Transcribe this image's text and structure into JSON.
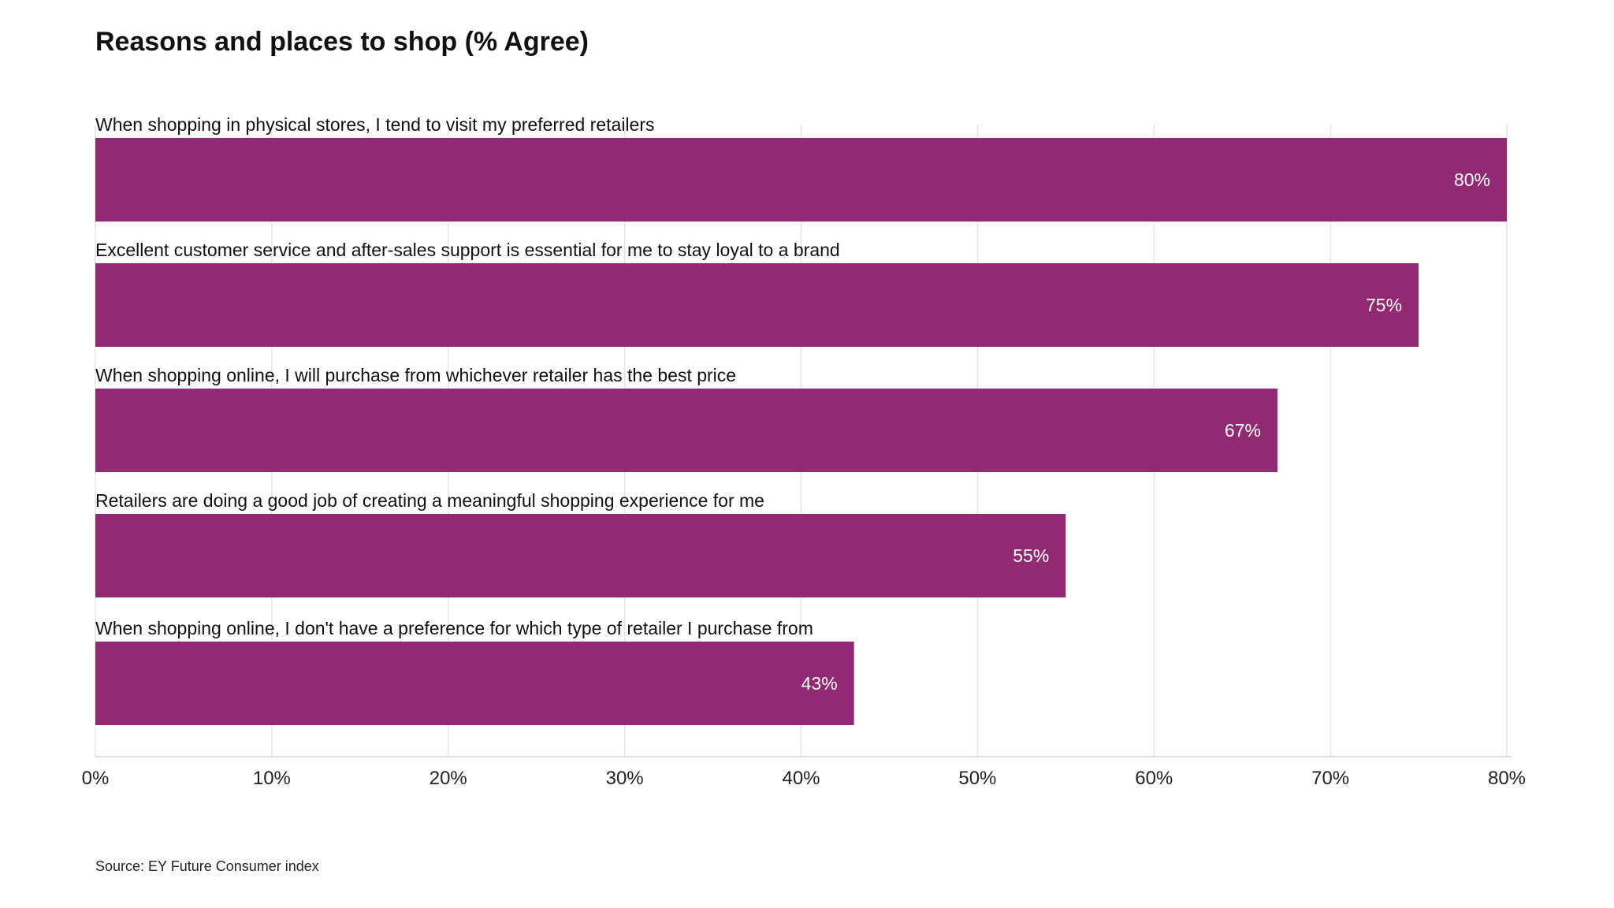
{
  "title": "Reasons and places to shop (% Agree)",
  "source": "Source: EY Future Consumer index",
  "chart_data": {
    "type": "bar",
    "orientation": "horizontal",
    "title": "Reasons and places to shop (% Agree)",
    "xlabel": "",
    "ylabel": "",
    "xlim": [
      0,
      80
    ],
    "x_ticks": [
      0,
      10,
      20,
      30,
      40,
      50,
      60,
      70,
      80
    ],
    "x_tick_labels": [
      "0%",
      "10%",
      "20%",
      "30%",
      "40%",
      "50%",
      "60%",
      "70%",
      "80%"
    ],
    "grid": "vertical",
    "legend": "none",
    "bar_color": "#912a72",
    "categories": [
      "When shopping in physical stores, I tend to visit my preferred retailers",
      "Excellent customer service and after-sales support is essential for me to stay loyal to a brand",
      "When shopping online, I will purchase from whichever retailer has the best price",
      "Retailers are doing a good job of creating a meaningful shopping experience for me",
      "When shopping online, I don't have a preference for which type of retailer I purchase from"
    ],
    "values": [
      80,
      75,
      67,
      55,
      43
    ],
    "value_labels": [
      "80%",
      "75%",
      "67%",
      "55%",
      "43%"
    ]
  }
}
